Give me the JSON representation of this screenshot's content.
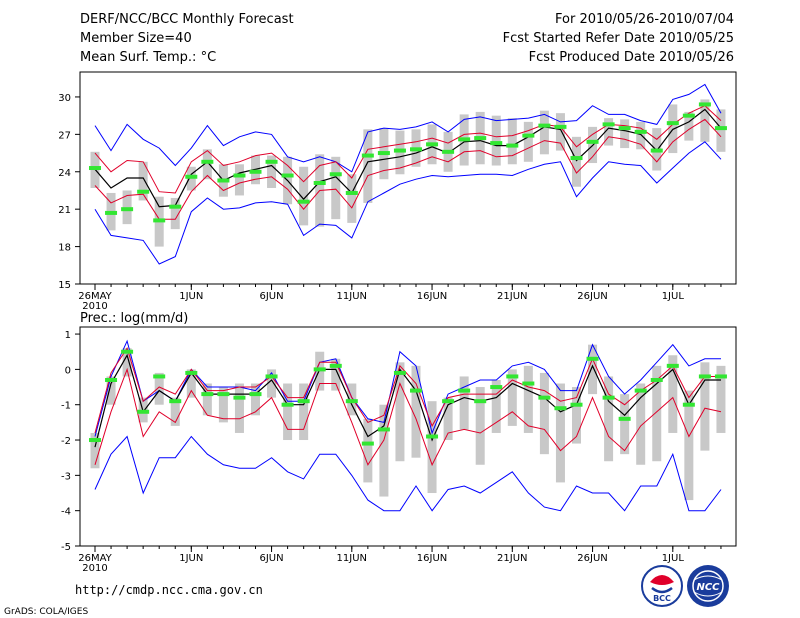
{
  "header": {
    "title": "DERF/NCC/BCC Monthly Forecast",
    "member_size": "Member Size=40",
    "variable": "Mean Surf. Temp.: °C",
    "period": "For 2010/05/26-2010/07/04",
    "fcst_started": "Fcst Started Refer Date 2010/05/25",
    "fcst_produced": "Fcst Produced Date 2010/05/26"
  },
  "footer": {
    "url": "http://cmdp.ncc.cma.gov.cn",
    "credit": "GrADS: COLA/IGES",
    "logo_bcc": "BCC",
    "logo_ncc": "NCC"
  },
  "colors": {
    "bar": "#c8c8c8",
    "mean": "#000000",
    "spread": "#e0002a",
    "extreme": "#0000ff",
    "median": "#32e632"
  },
  "chart_data": [
    {
      "type": "line",
      "title": "Mean Surf. Temp.: °C",
      "xlabel": "",
      "ylabel": "°C",
      "ylim": [
        15,
        32
      ],
      "yticks": [
        "15",
        "18",
        "21",
        "24",
        "27",
        "30"
      ],
      "xticks": [
        {
          "day": 0,
          "label": "26MAY",
          "sub": "2010"
        },
        {
          "day": 6,
          "label": "1JUN"
        },
        {
          "day": 11,
          "label": "6JUN"
        },
        {
          "day": 16,
          "label": "11JUN"
        },
        {
          "day": 21,
          "label": "16JUN"
        },
        {
          "day": 26,
          "label": "21JUN"
        },
        {
          "day": 31,
          "label": "26JUN"
        },
        {
          "day": 36,
          "label": "1JUL"
        }
      ],
      "series": {
        "mean": [
          24.2,
          22.7,
          23.5,
          23.5,
          21.2,
          21.3,
          23.8,
          24.8,
          23.3,
          23.9,
          24.2,
          24.5,
          23.3,
          21.8,
          23.2,
          23.6,
          22.3,
          24.8,
          25.0,
          25.2,
          25.5,
          26.0,
          25.5,
          26.4,
          26.5,
          26.1,
          26.1,
          26.8,
          27.6,
          27.4,
          24.9,
          26.1,
          27.5,
          27.3,
          27.0,
          25.7,
          27.4,
          28.0,
          29.0,
          27.5
        ],
        "upper": [
          25.5,
          24.0,
          24.9,
          24.8,
          22.4,
          22.3,
          24.8,
          25.7,
          24.5,
          24.8,
          25.3,
          25.5,
          24.5,
          23.2,
          24.5,
          24.8,
          23.5,
          25.8,
          26.0,
          26.2,
          26.4,
          26.7,
          26.3,
          27.0,
          27.1,
          26.8,
          26.9,
          27.3,
          27.8,
          27.6,
          26.0,
          27.0,
          27.8,
          27.7,
          27.5,
          26.6,
          27.8,
          28.7,
          29.3,
          28.1
        ],
        "lower": [
          22.9,
          21.5,
          22.1,
          22.2,
          20.2,
          20.2,
          22.4,
          23.7,
          22.5,
          23.1,
          23.4,
          23.6,
          22.6,
          21.0,
          22.5,
          22.6,
          21.1,
          23.7,
          24.1,
          24.3,
          24.7,
          25.2,
          24.8,
          25.6,
          25.7,
          25.2,
          25.3,
          25.9,
          26.5,
          26.3,
          23.9,
          25.2,
          26.8,
          26.6,
          26.2,
          24.8,
          26.4,
          27.4,
          28.2,
          26.8
        ],
        "max": [
          27.7,
          25.7,
          27.8,
          26.6,
          25.9,
          24.5,
          25.9,
          27.7,
          26.1,
          26.8,
          27.2,
          27.0,
          25.2,
          24.8,
          25.2,
          24.8,
          24.0,
          27.2,
          27.5,
          27.4,
          27.6,
          28.0,
          27.2,
          28.2,
          28.4,
          28.1,
          28.2,
          28.3,
          28.6,
          28.0,
          28.1,
          29.3,
          28.6,
          28.6,
          28.1,
          27.8,
          29.8,
          30.2,
          31.0,
          28.7
        ],
        "min": [
          21.0,
          18.9,
          18.7,
          18.5,
          16.6,
          17.2,
          20.8,
          21.9,
          21.0,
          21.1,
          21.5,
          21.6,
          21.4,
          18.9,
          19.8,
          19.7,
          18.7,
          21.6,
          22.3,
          23.0,
          23.4,
          23.7,
          23.6,
          23.7,
          23.8,
          23.8,
          23.7,
          24.2,
          24.6,
          24.8,
          22.0,
          23.5,
          24.8,
          24.6,
          24.5,
          23.1,
          24.3,
          25.5,
          26.4,
          25.0
        ],
        "median": [
          24.3,
          20.7,
          21.0,
          22.4,
          20.1,
          21.2,
          23.6,
          24.8,
          23.3,
          23.7,
          24.0,
          24.8,
          23.7,
          21.6,
          23.1,
          23.8,
          22.3,
          25.3,
          25.5,
          25.7,
          25.8,
          26.2,
          25.6,
          26.6,
          26.7,
          26.3,
          26.1,
          26.9,
          27.7,
          27.6,
          25.1,
          26.4,
          27.8,
          27.5,
          27.2,
          25.7,
          27.9,
          28.5,
          29.4,
          27.5
        ],
        "bar_top": [
          25.6,
          22.3,
          22.5,
          24.8,
          22.0,
          21.9,
          24.4,
          25.8,
          24.6,
          24.6,
          25.3,
          25.3,
          25.2,
          24.4,
          25.4,
          25.2,
          23.8,
          27.4,
          27.5,
          27.3,
          27.4,
          27.8,
          27.2,
          28.6,
          28.8,
          28.5,
          28.3,
          28.0,
          28.9,
          28.7,
          26.8,
          27.6,
          28.3,
          28.2,
          28.0,
          27.5,
          29.4,
          28.8,
          29.8,
          29.0
        ],
        "bar_bot": [
          22.7,
          19.3,
          19.8,
          21.7,
          18.0,
          19.4,
          22.5,
          23.4,
          22.0,
          22.1,
          23.0,
          22.7,
          21.4,
          19.7,
          19.6,
          20.2,
          19.9,
          21.5,
          23.4,
          23.8,
          24.4,
          24.6,
          24.0,
          24.5,
          24.6,
          24.5,
          24.6,
          24.8,
          25.4,
          25.7,
          22.8,
          24.7,
          26.1,
          25.9,
          25.8,
          24.1,
          25.5,
          26.5,
          26.4,
          25.6
        ]
      }
    },
    {
      "type": "line",
      "title": "Prec.: log(mm/d)",
      "xlabel": "",
      "ylabel": "log(mm/d)",
      "ylim": [
        -5,
        1.2
      ],
      "yticks": [
        "-5",
        "-4",
        "-3",
        "-2",
        "-1",
        "0",
        "1"
      ],
      "xticks": [
        {
          "day": 0,
          "label": "26MAY",
          "sub": "2010"
        },
        {
          "day": 6,
          "label": "1JUN"
        },
        {
          "day": 11,
          "label": "6JUN"
        },
        {
          "day": 16,
          "label": "11JUN"
        },
        {
          "day": 21,
          "label": "16JUN"
        },
        {
          "day": 26,
          "label": "21JUN"
        },
        {
          "day": 31,
          "label": "26JUN"
        },
        {
          "day": 36,
          "label": "1JUL"
        }
      ],
      "series": {
        "mean": [
          -2.2,
          -0.4,
          0.4,
          -1.2,
          -0.6,
          -0.9,
          -0.1,
          -0.7,
          -0.7,
          -0.7,
          -0.7,
          -0.3,
          -1.0,
          -1.0,
          0.0,
          0.0,
          -1.0,
          -1.9,
          -1.6,
          0.0,
          -0.6,
          -2.0,
          -1.0,
          -0.8,
          -0.9,
          -0.8,
          -0.4,
          -0.6,
          -0.8,
          -1.2,
          -1.0,
          0.1,
          -0.9,
          -1.3,
          -0.8,
          -0.4,
          0.0,
          -1.0,
          -0.3,
          -0.3
        ],
        "upper": [
          -1.8,
          -0.1,
          0.6,
          -0.9,
          -0.5,
          -0.7,
          0.0,
          -0.6,
          -0.6,
          -0.5,
          -0.5,
          -0.2,
          -0.8,
          -0.8,
          0.2,
          0.2,
          -0.8,
          -1.5,
          -1.3,
          0.1,
          -0.4,
          -1.6,
          -0.8,
          -0.7,
          -0.7,
          -0.7,
          -0.3,
          -0.5,
          -0.6,
          -0.9,
          -0.8,
          0.3,
          -0.7,
          -1.0,
          -0.6,
          -0.3,
          0.1,
          -0.8,
          -0.2,
          -0.2
        ],
        "lower": [
          -2.7,
          -1.2,
          0.0,
          -1.9,
          -1.2,
          -1.5,
          -0.6,
          -1.3,
          -1.4,
          -1.4,
          -1.2,
          -0.8,
          -1.7,
          -1.7,
          -0.4,
          -0.4,
          -1.5,
          -2.7,
          -2.0,
          -0.4,
          -1.4,
          -2.7,
          -1.8,
          -1.7,
          -1.8,
          -1.5,
          -1.2,
          -1.6,
          -1.7,
          -2.3,
          -1.9,
          -0.8,
          -1.9,
          -2.3,
          -1.6,
          -1.2,
          -0.8,
          -1.9,
          -1.1,
          -1.2
        ],
        "max": [
          -1.9,
          -0.2,
          0.8,
          -0.9,
          -0.6,
          -0.9,
          0.0,
          -0.5,
          -0.5,
          -0.5,
          -0.6,
          -0.1,
          -0.9,
          -0.9,
          0.2,
          0.3,
          -0.8,
          -1.4,
          -1.5,
          0.5,
          0.1,
          -1.8,
          -0.7,
          -0.5,
          -0.3,
          -0.3,
          0.1,
          0.2,
          0.0,
          -0.6,
          -0.6,
          0.7,
          -0.2,
          -0.7,
          -0.3,
          0.2,
          0.7,
          0.1,
          0.3,
          0.3
        ],
        "min": [
          -3.4,
          -2.4,
          -1.9,
          -3.5,
          -2.5,
          -2.5,
          -1.9,
          -2.4,
          -2.7,
          -2.8,
          -2.8,
          -2.5,
          -2.9,
          -3.1,
          -2.4,
          -2.4,
          -3.0,
          -3.7,
          -4.0,
          -4.0,
          -3.3,
          -4.0,
          -3.4,
          -3.3,
          -3.5,
          -3.2,
          -2.9,
          -3.5,
          -3.9,
          -4.0,
          -3.3,
          -3.5,
          -3.5,
          -4.0,
          -3.3,
          -3.3,
          -2.4,
          -4.0,
          -4.0,
          -3.4
        ],
        "median": [
          -2.0,
          -0.3,
          0.5,
          -1.2,
          -0.2,
          -0.9,
          -0.1,
          -0.7,
          -0.7,
          -0.8,
          -0.7,
          -0.2,
          -1.0,
          -0.9,
          0.0,
          0.1,
          -0.9,
          -2.1,
          -1.7,
          -0.1,
          -0.6,
          -1.9,
          -0.9,
          -0.6,
          -0.9,
          -0.5,
          -0.2,
          -0.4,
          -0.8,
          -1.1,
          -1.0,
          0.3,
          -0.8,
          -1.4,
          -0.6,
          -0.3,
          0.1,
          -1.0,
          -0.2,
          -0.2
        ],
        "bar_top": [
          -1.8,
          -0.2,
          0.6,
          -0.8,
          -0.1,
          -0.8,
          0.0,
          -0.4,
          -0.5,
          -0.4,
          -0.4,
          0.0,
          -0.4,
          -0.4,
          0.5,
          0.3,
          -0.4,
          -1.4,
          -1.0,
          0.2,
          0.1,
          -0.9,
          -0.8,
          -0.2,
          -0.5,
          -0.3,
          0.0,
          0.1,
          -0.1,
          -0.4,
          -0.5,
          0.7,
          -0.2,
          -0.7,
          -0.4,
          0.1,
          0.4,
          -0.6,
          0.2,
          0.1
        ],
        "bar_bot": [
          -2.8,
          -1.0,
          -0.2,
          -1.5,
          -1.0,
          -1.6,
          -0.8,
          -1.3,
          -1.5,
          -1.8,
          -1.3,
          -0.8,
          -2.0,
          -2.0,
          -0.6,
          -0.6,
          -1.3,
          -3.2,
          -3.6,
          -2.6,
          -2.5,
          -3.5,
          -2.0,
          -1.7,
          -2.7,
          -1.8,
          -1.6,
          -1.8,
          -2.4,
          -3.2,
          -2.1,
          -0.7,
          -2.6,
          -2.4,
          -2.7,
          -2.6,
          -1.8,
          -3.7,
          -2.3,
          -1.8
        ]
      }
    }
  ]
}
